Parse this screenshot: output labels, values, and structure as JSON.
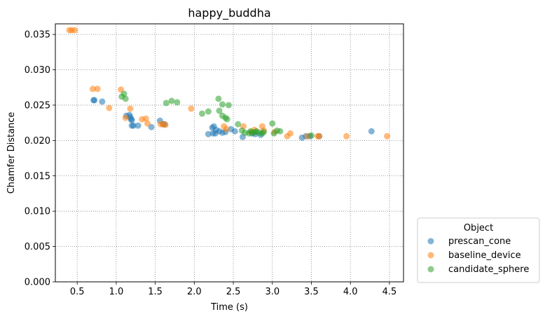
{
  "chart_data": {
    "type": "scatter",
    "title": "happy_buddha",
    "xlabel": "Time (s)",
    "ylabel": "Chamfer Distance",
    "xlim": [
      0.22,
      4.68
    ],
    "ylim": [
      0.0,
      0.0365
    ],
    "xticks": [
      "0.5",
      "1.0",
      "1.5",
      "2.0",
      "2.5",
      "3.0",
      "3.5",
      "4.0",
      "4.5"
    ],
    "xtick_values": [
      0.5,
      1.0,
      1.5,
      2.0,
      2.5,
      3.0,
      3.5,
      4.0,
      4.5
    ],
    "yticks": [
      "0.000",
      "0.005",
      "0.010",
      "0.015",
      "0.020",
      "0.025",
      "0.030",
      "0.035"
    ],
    "ytick_values": [
      0.0,
      0.005,
      0.01,
      0.015,
      0.02,
      0.025,
      0.03,
      0.035
    ],
    "grid": true,
    "legend": {
      "title": "Object",
      "placement": "lower-right-outside"
    },
    "series": [
      {
        "name": "prescan_cone",
        "color": "#1f77b4",
        "points": [
          [
            0.71,
            0.0257
          ],
          [
            0.72,
            0.0257
          ],
          [
            0.82,
            0.0255
          ],
          [
            1.13,
            0.0235
          ],
          [
            1.17,
            0.0236
          ],
          [
            1.18,
            0.0233
          ],
          [
            1.19,
            0.023
          ],
          [
            1.2,
            0.0229
          ],
          [
            1.22,
            0.0221
          ],
          [
            1.2,
            0.0221
          ],
          [
            1.28,
            0.0221
          ],
          [
            1.45,
            0.0219
          ],
          [
            1.56,
            0.0228
          ],
          [
            1.6,
            0.0223
          ],
          [
            1.62,
            0.0223
          ],
          [
            2.18,
            0.0209
          ],
          [
            2.23,
            0.0218
          ],
          [
            2.25,
            0.022
          ],
          [
            2.28,
            0.0215
          ],
          [
            2.24,
            0.021
          ],
          [
            2.27,
            0.021
          ],
          [
            2.32,
            0.0213
          ],
          [
            2.36,
            0.0211
          ],
          [
            2.4,
            0.0212
          ],
          [
            2.47,
            0.0216
          ],
          [
            2.52,
            0.0213
          ],
          [
            2.62,
            0.0205
          ],
          [
            2.74,
            0.021
          ],
          [
            2.78,
            0.0209
          ],
          [
            2.85,
            0.0208
          ],
          [
            3.38,
            0.0204
          ],
          [
            3.43,
            0.0206
          ],
          [
            3.48,
            0.0206
          ],
          [
            3.6,
            0.0206
          ],
          [
            4.27,
            0.0213
          ]
        ]
      },
      {
        "name": "baseline_device",
        "color": "#ff7f0e",
        "points": [
          [
            0.4,
            0.0356
          ],
          [
            0.43,
            0.0356
          ],
          [
            0.47,
            0.0356
          ],
          [
            0.7,
            0.0273
          ],
          [
            0.76,
            0.0273
          ],
          [
            0.91,
            0.0246
          ],
          [
            1.06,
            0.0272
          ],
          [
            1.12,
            0.0232
          ],
          [
            1.18,
            0.0245
          ],
          [
            1.33,
            0.023
          ],
          [
            1.38,
            0.0231
          ],
          [
            1.4,
            0.0224
          ],
          [
            1.57,
            0.0223
          ],
          [
            1.6,
            0.0223
          ],
          [
            1.63,
            0.0222
          ],
          [
            1.96,
            0.0245
          ],
          [
            2.38,
            0.022
          ],
          [
            2.41,
            0.0216
          ],
          [
            2.63,
            0.022
          ],
          [
            2.73,
            0.0212
          ],
          [
            2.77,
            0.0215
          ],
          [
            2.87,
            0.022
          ],
          [
            2.89,
            0.0214
          ],
          [
            3.03,
            0.0212
          ],
          [
            3.19,
            0.0206
          ],
          [
            3.23,
            0.021
          ],
          [
            3.45,
            0.0206
          ],
          [
            3.58,
            0.0206
          ],
          [
            3.6,
            0.0206
          ],
          [
            3.95,
            0.0206
          ],
          [
            4.47,
            0.0206
          ]
        ]
      },
      {
        "name": "candidate_sphere",
        "color": "#2ca02c",
        "points": [
          [
            1.07,
            0.0262
          ],
          [
            1.1,
            0.0266
          ],
          [
            1.12,
            0.0259
          ],
          [
            1.64,
            0.0253
          ],
          [
            1.71,
            0.0256
          ],
          [
            1.78,
            0.0254
          ],
          [
            2.1,
            0.0238
          ],
          [
            2.18,
            0.0241
          ],
          [
            2.31,
            0.0259
          ],
          [
            2.32,
            0.0242
          ],
          [
            2.36,
            0.0251
          ],
          [
            2.36,
            0.0235
          ],
          [
            2.4,
            0.0232
          ],
          [
            2.42,
            0.023
          ],
          [
            2.44,
            0.025
          ],
          [
            2.56,
            0.0223
          ],
          [
            2.61,
            0.0214
          ],
          [
            2.65,
            0.0211
          ],
          [
            2.7,
            0.021
          ],
          [
            2.72,
            0.0213
          ],
          [
            2.75,
            0.0211
          ],
          [
            2.78,
            0.0212
          ],
          [
            2.8,
            0.0213
          ],
          [
            2.83,
            0.0211
          ],
          [
            2.87,
            0.021
          ],
          [
            2.89,
            0.0212
          ],
          [
            3.0,
            0.0224
          ],
          [
            3.02,
            0.021
          ],
          [
            3.06,
            0.0214
          ],
          [
            3.1,
            0.0213
          ],
          [
            3.5,
            0.0207
          ]
        ]
      }
    ]
  }
}
